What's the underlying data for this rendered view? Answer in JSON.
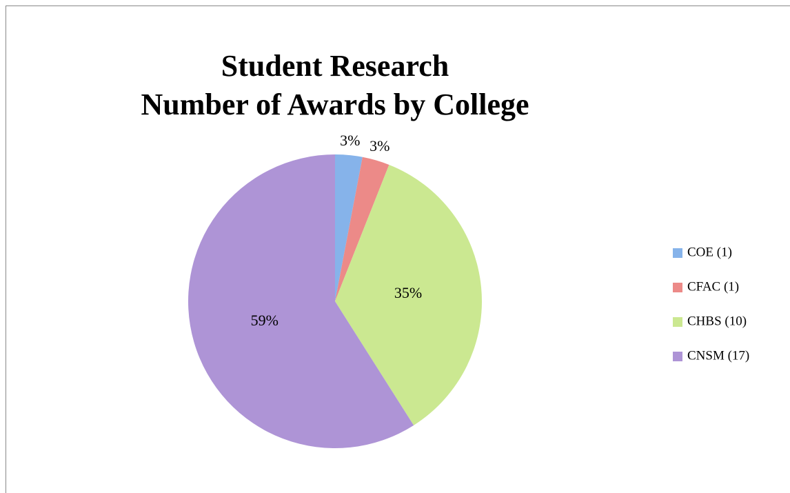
{
  "chart_data": {
    "type": "pie",
    "title": [
      "Student Research",
      "Number of Awards by College"
    ],
    "categories": [
      "COE (1)",
      "CFAC (1)",
      "CHBS (10)",
      "CNSM (17)"
    ],
    "values": [
      3,
      3,
      35,
      59
    ],
    "value_labels": [
      "3%",
      "3%",
      "35%",
      "59%"
    ],
    "colors": [
      "#86b3ea",
      "#ec8a88",
      "#cbe891",
      "#ae94d6"
    ],
    "legend": "right"
  }
}
